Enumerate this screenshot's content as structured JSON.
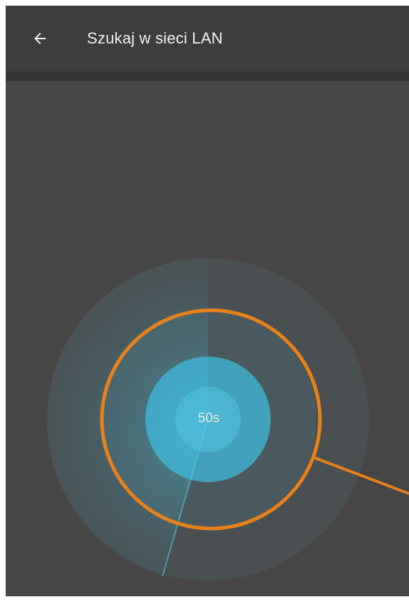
{
  "header": {
    "title": "Szukaj w sieci LAN",
    "back_icon": "arrow-left-icon"
  },
  "scan": {
    "countdown": "50s"
  },
  "colors": {
    "background": "#464646",
    "app_bar": "#3d3d3d",
    "radar_accent": "#3fb6d6",
    "highlight_annotation": "#e8811a"
  }
}
